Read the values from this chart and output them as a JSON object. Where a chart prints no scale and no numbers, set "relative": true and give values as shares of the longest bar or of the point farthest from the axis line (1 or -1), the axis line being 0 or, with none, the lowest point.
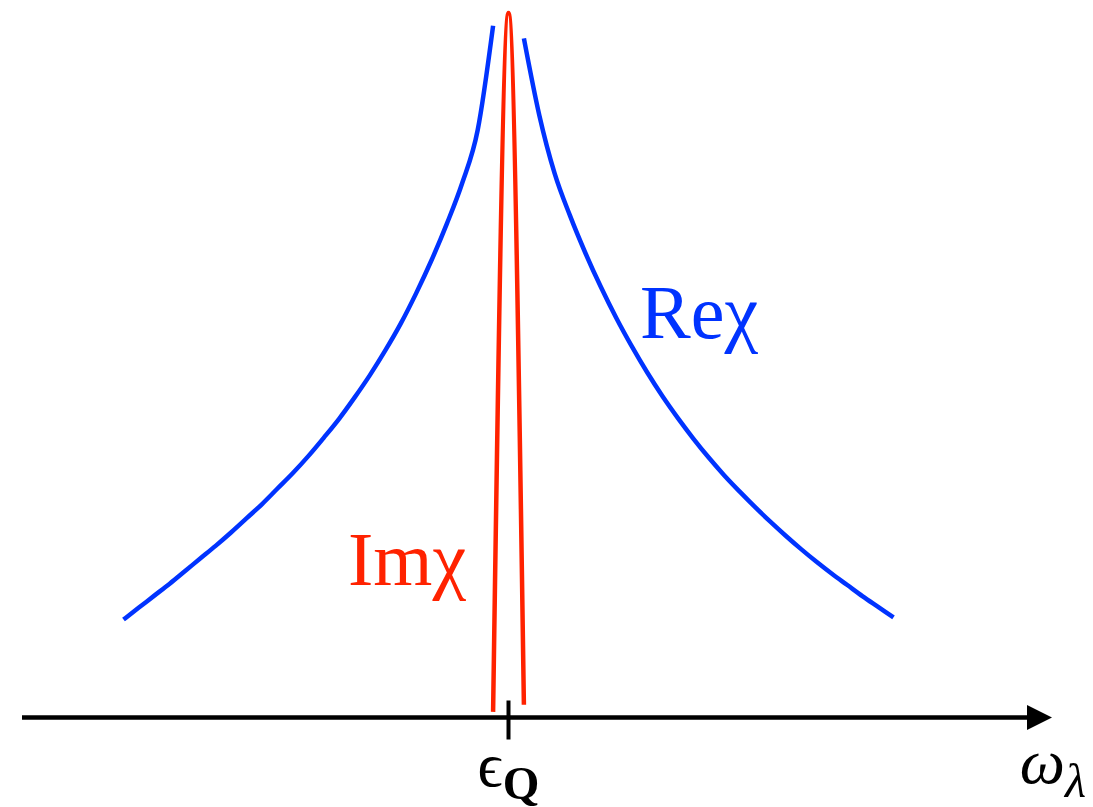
{
  "chart_data": {
    "type": "line",
    "relative": true,
    "xlabel": "ω$_{λ}$",
    "annotations": [
      "ϵ$_{Q}$"
    ],
    "categories": [
      null,
      null,
      null,
      null,
      null,
      null,
      null,
      null,
      null,
      null,
      null,
      null,
      null,
      null,
      null,
      null,
      null,
      null,
      null,
      null,
      null,
      null,
      null,
      null,
      null,
      null,
      null,
      null,
      null,
      null,
      null,
      null,
      null,
      null,
      null,
      null,
      null,
      null,
      null,
      null,
      null,
      null,
      null,
      null,
      null,
      null,
      null,
      null,
      null,
      null,
      null
    ],
    "series": [
      {
        "name": "Reχ",
        "color": "#0033ff",
        "values": [
          0.139,
          0.156,
          0.173,
          0.19,
          0.208,
          0.226,
          0.244,
          0.263,
          0.283,
          0.303,
          0.325,
          0.347,
          0.371,
          0.397,
          0.424,
          0.454,
          0.486,
          0.521,
          0.559,
          0.602,
          0.649,
          0.701,
          0.759,
          0.834,
          0.982,
          null,
          0.964,
          0.855,
          0.772,
          0.712,
          0.659,
          0.611,
          0.567,
          0.527,
          0.49,
          0.456,
          0.425,
          0.396,
          0.369,
          0.344,
          0.321,
          0.299,
          0.278,
          0.258,
          0.239,
          0.221,
          0.204,
          0.188,
          0.172,
          0.157,
          0.142
        ]
      },
      {
        "name": "Imχ",
        "color": "#ff2200",
        "values": [
          null,
          null,
          null,
          null,
          null,
          null,
          null,
          null,
          null,
          null,
          null,
          null,
          null,
          null,
          null,
          null,
          null,
          null,
          null,
          null,
          null,
          null,
          null,
          null,
          0.008,
          1,
          0.018,
          null,
          null,
          null,
          null,
          null,
          null,
          null,
          null,
          null,
          null,
          null,
          null,
          null,
          null,
          null,
          null,
          null,
          null,
          null,
          null,
          null,
          null,
          null,
          null
        ]
      }
    ]
  }
}
